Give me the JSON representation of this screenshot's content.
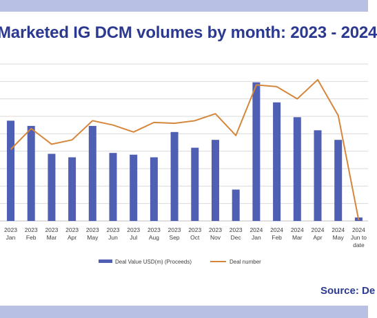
{
  "header": {
    "title": "Marketed IG DCM volumes by month: 2023 - 2024"
  },
  "footer": {
    "source": "Source: De"
  },
  "colors": {
    "band": "#b8c0e3",
    "bar": "#4f5fb3",
    "line": "#d4863a",
    "grid": "#d9d9d9",
    "axis": "#bfbfbf"
  },
  "chart_data": {
    "type": "bar",
    "categories": [
      [
        "2023",
        "Jan"
      ],
      [
        "2023",
        "Feb"
      ],
      [
        "2023",
        "Mar"
      ],
      [
        "2023",
        "Apr"
      ],
      [
        "2023",
        "May"
      ],
      [
        "2023",
        "Jun"
      ],
      [
        "2023",
        "Jul"
      ],
      [
        "2023",
        "Aug"
      ],
      [
        "2023",
        "Sep"
      ],
      [
        "2023",
        "Oct"
      ],
      [
        "2023",
        "Nov"
      ],
      [
        "2023",
        "Dec"
      ],
      [
        "2024",
        "Jan"
      ],
      [
        "2024",
        "Feb"
      ],
      [
        "2024",
        "Mar"
      ],
      [
        "2024",
        "Apr"
      ],
      [
        "2024",
        "May"
      ],
      [
        "2024",
        "Jun to",
        "date"
      ]
    ],
    "series": [
      {
        "name": "Deal Value USD(m) (Proceeds)",
        "type": "bar",
        "values": [
          5.75,
          5.45,
          3.85,
          3.65,
          5.45,
          3.9,
          3.8,
          3.65,
          5.1,
          4.2,
          4.65,
          1.8,
          7.95,
          6.8,
          5.95,
          5.2,
          4.65,
          0.2
        ]
      },
      {
        "name": "Deal number",
        "type": "line",
        "values": [
          4.1,
          5.3,
          4.4,
          4.65,
          5.75,
          5.5,
          5.1,
          5.65,
          5.6,
          5.75,
          6.15,
          4.9,
          7.8,
          7.7,
          7.0,
          8.1,
          6.05,
          0.05
        ]
      }
    ],
    "ylim": [
      0,
      9
    ],
    "grid": true,
    "legend": "bottom-center"
  }
}
